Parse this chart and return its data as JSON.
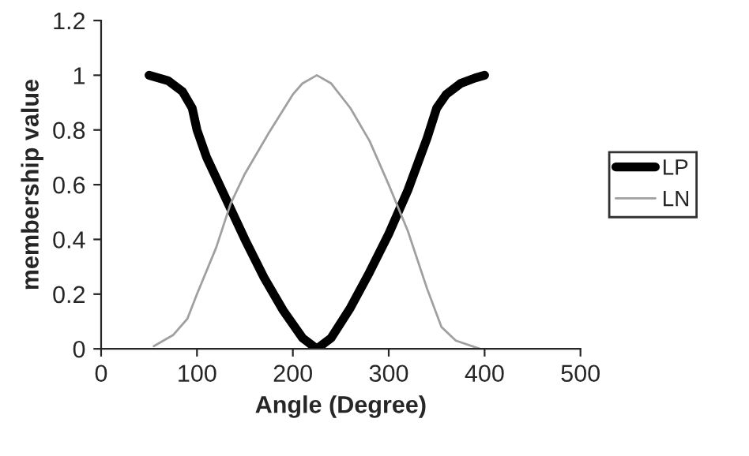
{
  "chart_data": {
    "type": "line",
    "xlabel": "Angle (Degree)",
    "ylabel": "membership value",
    "xlim": [
      0,
      500
    ],
    "xticks": [
      0,
      100,
      200,
      300,
      400,
      500
    ],
    "ylim": [
      0,
      1.2
    ],
    "yticks": [
      0,
      0.2,
      0.4,
      0.6,
      0.8,
      1,
      1.2
    ],
    "grid": false,
    "legend": "right",
    "marker": "none",
    "line_style": "solid",
    "series": [
      {
        "name": "LP",
        "color": "#000000",
        "x": [
          50,
          70,
          85,
          95,
          100,
          110,
          130,
          150,
          170,
          190,
          210,
          225,
          240,
          260,
          280,
          300,
          320,
          340,
          350,
          360,
          375,
          390,
          400
        ],
        "values": [
          1.0,
          0.98,
          0.94,
          0.88,
          0.8,
          0.7,
          0.55,
          0.4,
          0.26,
          0.14,
          0.04,
          0.0,
          0.04,
          0.15,
          0.28,
          0.42,
          0.58,
          0.77,
          0.88,
          0.93,
          0.97,
          0.99,
          1.0
        ]
      },
      {
        "name": "LN",
        "color": "#a0a0a0",
        "x": [
          55,
          75,
          90,
          100,
          120,
          135,
          150,
          175,
          200,
          210,
          220,
          225,
          240,
          260,
          280,
          300,
          320,
          340,
          355,
          370,
          395
        ],
        "values": [
          0.01,
          0.05,
          0.11,
          0.2,
          0.37,
          0.53,
          0.64,
          0.79,
          0.93,
          0.97,
          0.99,
          1.0,
          0.97,
          0.88,
          0.76,
          0.6,
          0.43,
          0.22,
          0.08,
          0.03,
          0.0
        ]
      }
    ]
  }
}
